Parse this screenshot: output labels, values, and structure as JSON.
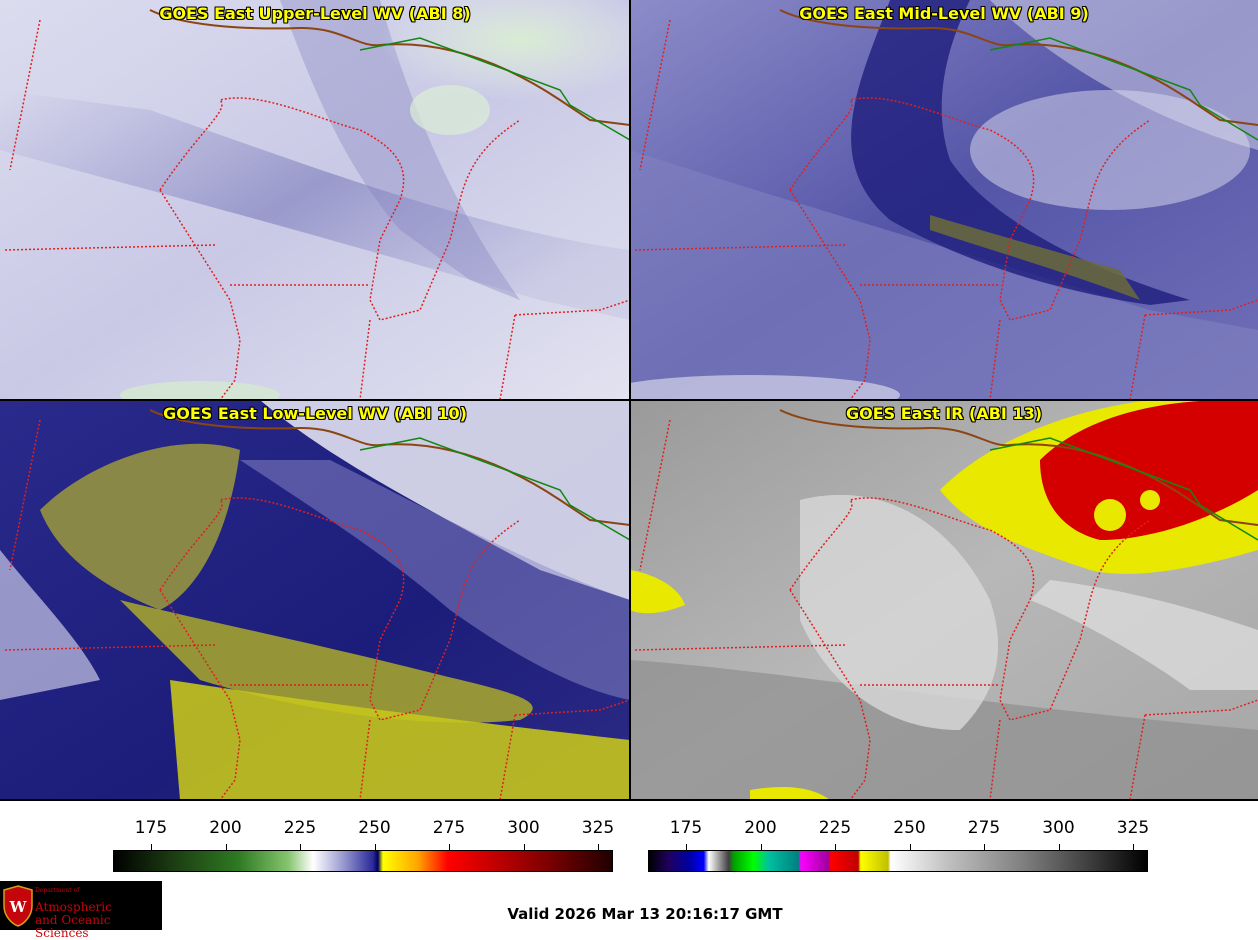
{
  "panels": [
    {
      "title": "GOES East Upper-Level WV (ABI 8)",
      "style": "upper"
    },
    {
      "title": "GOES East Mid-Level WV (ABI 9)",
      "style": "mid"
    },
    {
      "title": "GOES East Low-Level WV (ABI 10)",
      "style": "low"
    },
    {
      "title": "GOES East IR (ABI 13)",
      "style": "ir"
    }
  ],
  "colorbars": {
    "wv": {
      "ticks": [
        "175",
        "200",
        "225",
        "250",
        "275",
        "300",
        "325"
      ],
      "colors": [
        "#000000",
        "#2a6e1e",
        "#8fc27a",
        "#ffffff",
        "#3a3aa8",
        "#000080",
        "#ffff00",
        "#ff8c00",
        "#ff0000",
        "#8b0000",
        "#000000"
      ]
    },
    "ir": {
      "ticks": [
        "175",
        "200",
        "225",
        "250",
        "275",
        "300",
        "325"
      ]
    }
  },
  "logo": {
    "dept": "Department of",
    "name_line1": "Atmospheric",
    "name_line2": "and Oceanic Sciences"
  },
  "footer": {
    "valid": "Valid 2026 Mar 13 20:16:17 GMT"
  }
}
